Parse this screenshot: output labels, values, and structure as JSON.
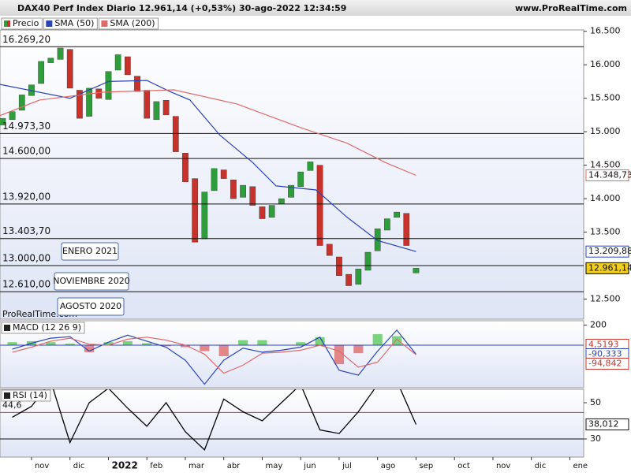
{
  "chart_data": [
    {
      "type": "candlestick",
      "title": "DAX40 Perf Index Diario 12.961,14 (+0,53%) 30-ago-2022 12:34:59",
      "source": "www.ProRealTime.com",
      "watermark": "ProRealTime.com",
      "price_name": "Precio",
      "up_color": "#2e9e3a",
      "down_color": "#c8322a",
      "x": [
        0.25,
        0.5,
        0.75,
        1.0,
        1.25,
        1.5,
        1.75,
        2.0,
        2.25,
        2.5,
        2.75,
        3.0,
        3.25,
        3.5,
        3.75,
        4.0,
        4.25,
        4.5,
        4.75,
        5.0,
        5.25,
        5.5,
        5.75,
        6.0,
        6.25,
        6.5,
        6.75,
        7.0,
        7.25,
        7.5,
        7.75,
        8.0,
        8.25,
        8.5,
        8.75,
        9.0,
        9.25,
        9.5,
        9.75,
        10.0,
        10.25,
        10.5,
        10.75,
        11.0
      ],
      "open": [
        15100,
        15180,
        15320,
        15540,
        15720,
        16030,
        16080,
        16230,
        15620,
        15230,
        15640,
        15480,
        15920,
        16120,
        15830,
        15620,
        15180,
        15470,
        15230,
        14680,
        14300,
        13400,
        14120,
        14430,
        14280,
        14020,
        14180,
        13880,
        13720,
        13920,
        14020,
        14180,
        14420,
        14500,
        13320,
        13130,
        12870,
        12720,
        12930,
        13220,
        13530,
        13720,
        13780,
        12890
      ],
      "close": [
        15200,
        15300,
        15550,
        15700,
        16050,
        16100,
        16250,
        15650,
        15200,
        15650,
        15500,
        15900,
        16150,
        15850,
        15600,
        15200,
        15450,
        15250,
        14700,
        14250,
        13350,
        14100,
        14450,
        14300,
        14000,
        14200,
        13900,
        13700,
        13900,
        14000,
        14200,
        14400,
        14550,
        13300,
        13150,
        12850,
        12700,
        12950,
        13200,
        13550,
        13700,
        13800,
        13300,
        12961.14
      ],
      "series": [
        {
          "name": "SMA (50)",
          "color": "#2a44b8",
          "x": [
            0.18,
            2.0,
            3.0,
            4.0,
            4.6,
            5.12,
            5.9,
            6.75,
            7.36,
            8.4,
            9.2,
            10.0,
            11.0
          ],
          "values": [
            15707,
            15500,
            15750,
            15765,
            15600,
            15474,
            14949,
            14540,
            14190,
            14130,
            13725,
            13375,
            13209.88
          ]
        },
        {
          "name": "SMA (200)",
          "color": "#e06a6a",
          "x": [
            0.18,
            1.21,
            2.85,
            4.7,
            6.34,
            7.98,
            9.2,
            10.2,
            11.0
          ],
          "values": [
            15240,
            15474,
            15590,
            15625,
            15415,
            15065,
            14830,
            14540,
            14348.73
          ]
        }
      ],
      "xlim": [
        0.18,
        15.36
      ],
      "ylim": [
        12200,
        16520
      ],
      "yticks": [
        {
          "value": 16500,
          "label": "16.500"
        },
        {
          "value": 16000,
          "label": "16.000"
        },
        {
          "value": 15500,
          "label": "15.500"
        },
        {
          "value": 15000,
          "label": "15.000"
        },
        {
          "value": 14500,
          "label": "14.500"
        },
        {
          "value": 14000,
          "label": "14.000"
        },
        {
          "value": 13500,
          "label": "13.500"
        },
        {
          "value": 12500,
          "label": "12.500"
        }
      ],
      "xticks": [
        {
          "value": 1,
          "label": "nov"
        },
        {
          "value": 2,
          "label": "dic"
        },
        {
          "value": 3,
          "label": "2022"
        },
        {
          "value": 4,
          "label": "feb"
        },
        {
          "value": 5,
          "label": "mar"
        },
        {
          "value": 6,
          "label": "abr"
        },
        {
          "value": 7,
          "label": "may"
        },
        {
          "value": 8,
          "label": "jun"
        },
        {
          "value": 9,
          "label": "jul"
        },
        {
          "value": 10,
          "label": "ago"
        },
        {
          "value": 11,
          "label": "sep"
        },
        {
          "value": 12,
          "label": "oct"
        },
        {
          "value": 13,
          "label": "nov"
        },
        {
          "value": 14,
          "label": "dic"
        },
        {
          "value": 15,
          "label": "ene"
        }
      ],
      "levels": [
        {
          "value": 16269.2,
          "label": "16.269,20"
        },
        {
          "value": 14973.3,
          "label": "14.973,30"
        },
        {
          "value": 14600,
          "label": "14.600,00"
        },
        {
          "value": 13920,
          "label": "13.920,00"
        },
        {
          "value": 13403.7,
          "label": "13.403,70"
        },
        {
          "value": 13000,
          "label": "13.000,00"
        },
        {
          "value": 12610,
          "label": "12.610,00"
        }
      ],
      "annotations": [
        "ENERO 2021",
        "NOVIEMBRE 2020",
        "AGOSTO 2020"
      ],
      "last_labels": [
        {
          "value": 14348.73,
          "label": "14.348,73",
          "color": "#e06a6a",
          "background": "#ffffff"
        },
        {
          "value": 13209.88,
          "label": "13.209,88",
          "color": "#2a44b8",
          "background": "#ffffff"
        },
        {
          "value": 12961.14,
          "label": "12.961,14",
          "color": "#000000",
          "background": "#f2cf1f"
        }
      ]
    },
    {
      "type": "macd",
      "title": "MACD (12 26 9)",
      "x": [
        0.5,
        1.0,
        1.5,
        2.0,
        2.5,
        3.0,
        3.5,
        4.0,
        4.5,
        5.0,
        5.5,
        6.0,
        6.5,
        7.0,
        7.5,
        8.0,
        8.5,
        9.0,
        9.5,
        10.0,
        10.5,
        11.0
      ],
      "series": [
        {
          "name": "MACD",
          "color": "#2a44b8",
          "values": [
            -40,
            20,
            70,
            85,
            -60,
            30,
            100,
            40,
            -20,
            -150,
            -390,
            -150,
            -30,
            -70,
            -50,
            -20,
            80,
            -250,
            -300,
            -60,
            150,
            -90.333
          ]
        },
        {
          "name": "Signal",
          "color": "#e06a6a",
          "values": [
            -70,
            -20,
            40,
            70,
            10,
            0,
            60,
            80,
            50,
            0,
            -90,
            -280,
            -200,
            -80,
            -70,
            -50,
            0,
            -60,
            -220,
            -170,
            60,
            -94.842
          ]
        }
      ],
      "histogram": {
        "up_color": "#5cc95c",
        "down_color": "#e06a6a",
        "values": [
          30,
          40,
          30,
          15,
          -70,
          30,
          40,
          20,
          -10,
          -20,
          -60,
          -110,
          50,
          50,
          0,
          30,
          80,
          -190,
          -80,
          110,
          90,
          4.5193
        ]
      },
      "ylim": [
        -425,
        244
      ],
      "yticks": [
        200
      ],
      "zero_color": "#2a44b8",
      "last_labels": [
        {
          "value": 4.5193,
          "label": "4,5193",
          "color": "#c8322a"
        },
        {
          "value": -90.333,
          "label": "-90,333",
          "color": "#2a44b8"
        },
        {
          "value": -94.842,
          "label": "-94,842",
          "color": "#c8322a"
        }
      ]
    },
    {
      "type": "rsi",
      "title": "RSI (14)",
      "x": [
        0.5,
        1.0,
        1.5,
        2.0,
        2.5,
        3.0,
        3.5,
        4.0,
        4.5,
        5.0,
        5.5,
        6.0,
        6.5,
        7.0,
        7.5,
        8.0,
        8.5,
        9.0,
        9.5,
        10.0,
        10.5,
        11.0
      ],
      "values": [
        42,
        48,
        62,
        28,
        50,
        58,
        47,
        37,
        50,
        34,
        24,
        52,
        45,
        40,
        50,
        60,
        35,
        33,
        45,
        60,
        62,
        38.012
      ],
      "color": "#000000",
      "ylim": [
        20,
        57.4
      ],
      "yticks": [
        50,
        30
      ],
      "reference": {
        "value": 44.6,
        "label": "44,6",
        "color": "#d03030"
      },
      "last_label": {
        "value": 38.012,
        "label": "38,012"
      }
    }
  ]
}
